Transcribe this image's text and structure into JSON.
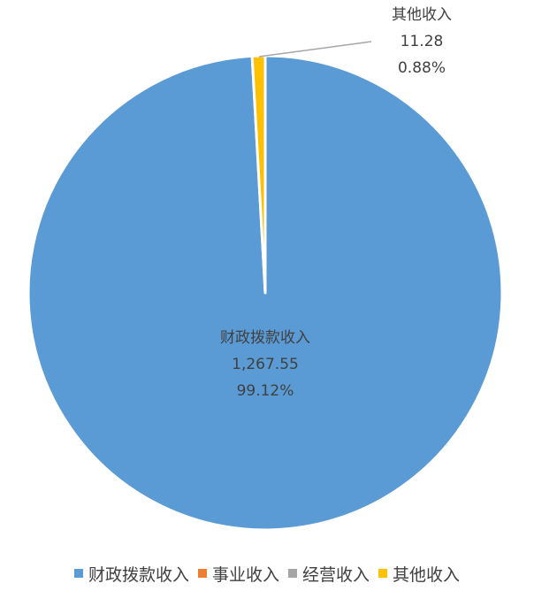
{
  "chart_data": {
    "type": "pie",
    "slices": [
      {
        "name": "财政拨款收入",
        "value": 1267.55,
        "value_label": "1,267.55",
        "percent_label": "99.12%",
        "color": "#5B9BD5"
      },
      {
        "name": "事业收入",
        "value": 0,
        "color": "#ED7D31"
      },
      {
        "name": "经营收入",
        "value": 0,
        "color": "#A5A5A5"
      },
      {
        "name": "其他收入",
        "value": 11.28,
        "value_label": "11.28",
        "percent_label": "0.88%",
        "color": "#FFC000"
      }
    ],
    "legend_position": "bottom",
    "start_angle": "12 o'clock, clockwise"
  }
}
